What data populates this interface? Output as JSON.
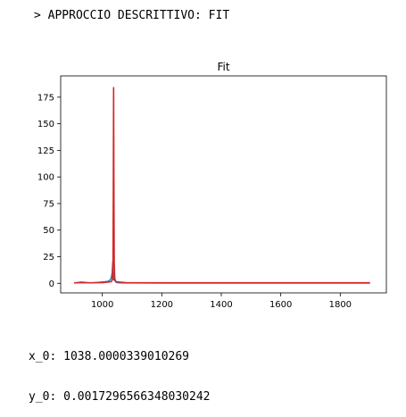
{
  "cell": {
    "heading": "> APPROCCIO DESCRITTIVO: FIT",
    "output_lines": [
      "x_0: 1038.0000339010269",
      "y_0: 0.0017296566348030242"
    ]
  },
  "colors": {
    "data": "#1f77b4",
    "fit": "#d62728"
  },
  "chart_data": {
    "type": "line",
    "title": "Fit",
    "xlabel": "",
    "ylabel": "",
    "xlim": [
      860,
      1955
    ],
    "ylim": [
      -9,
      195
    ],
    "xticks": [
      1000,
      1200,
      1400,
      1600,
      1800
    ],
    "yticks": [
      0,
      25,
      50,
      75,
      100,
      125,
      150,
      175
    ],
    "grid": false,
    "series": [
      {
        "color": "#1f77b4",
        "x": [
          905,
          930,
          960,
          990,
          1010,
          1020,
          1026,
          1030,
          1033,
          1035,
          1036,
          1037,
          1038,
          1039,
          1040,
          1041,
          1043,
          1046,
          1050,
          1060,
          1080,
          1120,
          1200,
          1300,
          1400,
          1500,
          1600,
          1700,
          1800,
          1900
        ],
        "y": [
          0.3,
          1.2,
          0.4,
          1.0,
          1.5,
          2.0,
          3.0,
          5.0,
          10.0,
          20.0,
          12.0,
          6.0,
          3.0,
          8.0,
          10.0,
          4.0,
          2.0,
          1.0,
          0.6,
          0.4,
          0.3,
          0.3,
          0.2,
          0.2,
          0.2,
          0.2,
          0.2,
          0.2,
          0.2,
          0.2
        ]
      },
      {
        "color": "#d62728",
        "x": [
          905,
          1000,
          1030,
          1034,
          1036,
          1037,
          1038,
          1039,
          1040,
          1042,
          1046,
          1080,
          1200,
          1400,
          1600,
          1800,
          1900
        ],
        "y": [
          0.5,
          0.6,
          1.5,
          4.0,
          20.0,
          90.0,
          184.0,
          90.0,
          20.0,
          4.0,
          1.5,
          0.6,
          0.5,
          0.5,
          0.5,
          0.5,
          0.5
        ]
      }
    ]
  }
}
